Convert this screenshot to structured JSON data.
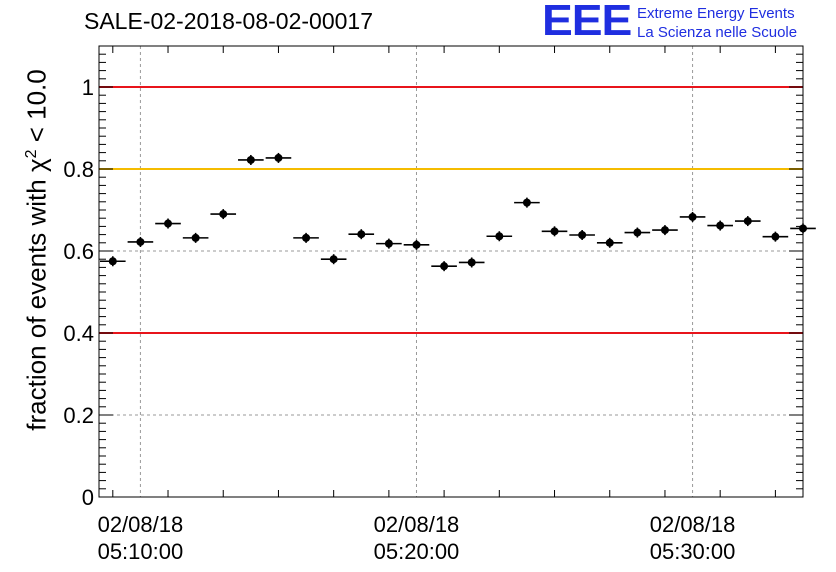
{
  "title": "SALE-02-2018-08-02-00017",
  "logo": {
    "mark": "EEE",
    "line1": "Extreme Energy Events",
    "line2": "La Scienza nelle Scuole",
    "color": "#1f2ee0"
  },
  "chart_data": {
    "type": "scatter",
    "ylabel": {
      "prefix": "fraction of events with χ",
      "sup": "2",
      "suffix": " < 10.0"
    },
    "ylim": [
      0,
      1.1
    ],
    "yticks": [
      {
        "value": 0,
        "label": "0"
      },
      {
        "value": 0.2,
        "label": "0.2"
      },
      {
        "value": 0.4,
        "label": "0.4"
      },
      {
        "value": 0.6,
        "label": "0.6"
      },
      {
        "value": 0.8,
        "label": "0.8"
      },
      {
        "value": 1,
        "label": "1"
      }
    ],
    "x_unit": "minutes after 05:08:30",
    "xlim": [
      0,
      25.5
    ],
    "xticks": [
      {
        "time": "05:10:00",
        "date": "02/08/18",
        "value": 1.5
      },
      {
        "time": "05:20:00",
        "date": "02/08/18",
        "value": 11.5
      },
      {
        "time": "05:30:00",
        "date": "02/08/18",
        "value": 21.5
      }
    ],
    "grid": true,
    "reference_lines": [
      {
        "y": 1.0,
        "color": "#e8141b"
      },
      {
        "y": 0.8,
        "color": "#f5bc00"
      },
      {
        "y": 0.4,
        "color": "#e8141b"
      }
    ],
    "bin_width_minutes": 1,
    "values": [
      0.575,
      0.622,
      0.667,
      0.632,
      0.69,
      0.822,
      0.827,
      0.632,
      0.58,
      0.641,
      0.618,
      0.615,
      0.563,
      0.572,
      0.636,
      0.718,
      0.648,
      0.639,
      0.62,
      0.645,
      0.651,
      0.683,
      0.662,
      0.673,
      0.635,
      0.655
    ]
  }
}
